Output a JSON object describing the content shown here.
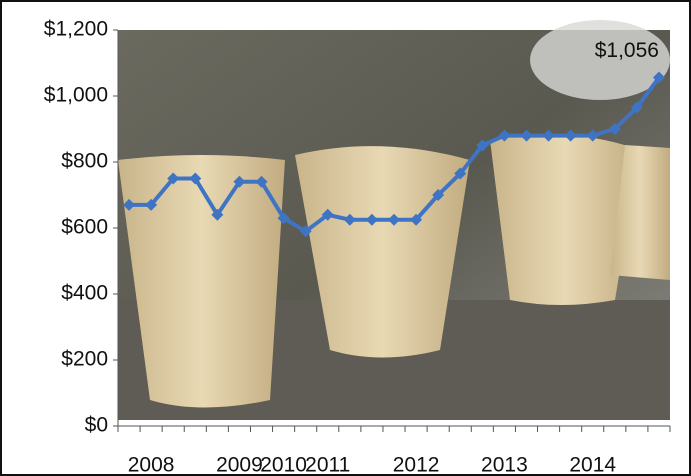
{
  "chart_data": {
    "type": "line",
    "categories": [
      null,
      "2008",
      null,
      null,
      null,
      "2009",
      null,
      "2010",
      null,
      "2011",
      null,
      null,
      null,
      "2012",
      null,
      null,
      null,
      "2013",
      null,
      null,
      null,
      "2014",
      null,
      null,
      null
    ],
    "series": [
      {
        "color": "#3f74c4",
        "values": [
          670,
          670,
          750,
          750,
          640,
          740,
          740,
          630,
          590,
          640,
          625,
          625,
          625,
          625,
          700,
          765,
          850,
          880,
          880,
          880,
          880,
          880,
          900,
          965,
          1056
        ],
        "value_labels": [
          null,
          null,
          null,
          null,
          null,
          null,
          null,
          null,
          null,
          null,
          null,
          null,
          null,
          null,
          null,
          null,
          null,
          null,
          null,
          null,
          null,
          null,
          null,
          null,
          "$1,056"
        ]
      }
    ],
    "ylim": [
      0,
      1200
    ],
    "yticks": [
      {
        "value": 0,
        "label": "$0"
      },
      {
        "value": 200,
        "label": "$200"
      },
      {
        "value": 400,
        "label": "$400"
      },
      {
        "value": 600,
        "label": "$600"
      },
      {
        "value": 800,
        "label": "$800"
      },
      {
        "value": 1000,
        "label": "$1,000"
      },
      {
        "value": 1200,
        "label": "$1,200"
      }
    ]
  }
}
